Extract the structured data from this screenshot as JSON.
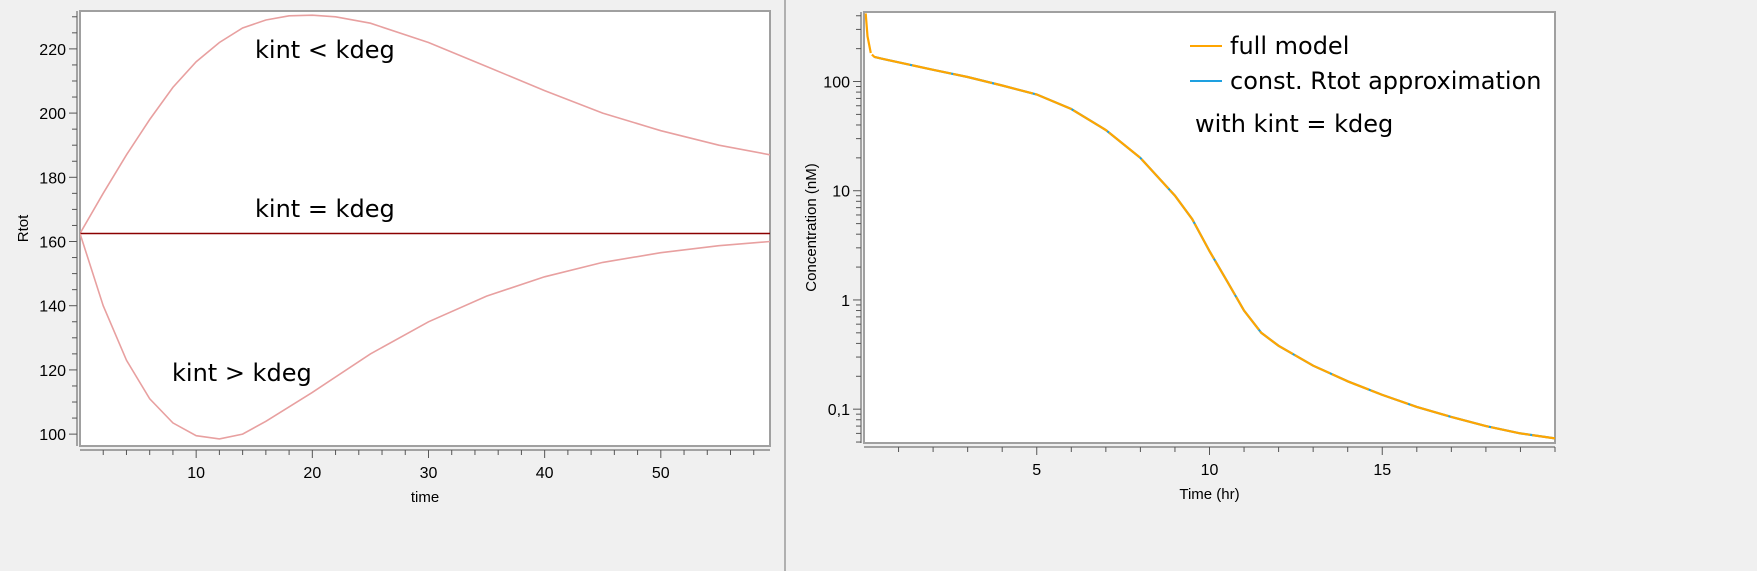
{
  "chart_data": [
    {
      "type": "line",
      "xlabel": "time",
      "ylabel": "Rtot",
      "xlim": [
        0,
        59.4
      ],
      "ylim": [
        96.3,
        231.8
      ],
      "xticks": [
        10,
        20,
        30,
        40,
        50
      ],
      "yticks": [
        100,
        120,
        140,
        160,
        180,
        200,
        220
      ],
      "grid": false,
      "annotations": [
        "kint < kdeg",
        "kint = kdeg",
        "kint > kdeg"
      ],
      "series": [
        {
          "color": "#e8a0a0",
          "x": [
            0,
            2,
            4,
            6,
            8,
            10,
            12,
            14,
            16,
            18,
            20,
            22,
            25,
            30,
            35,
            40,
            45,
            50,
            55,
            59.4
          ],
          "y": [
            162.5,
            175,
            187,
            198,
            208,
            216,
            222,
            226.5,
            229,
            230.3,
            230.5,
            230,
            228,
            222,
            214.5,
            207,
            200,
            194.5,
            190,
            187
          ]
        },
        {
          "color": "#8b0000",
          "x": [
            0,
            59.4
          ],
          "y": [
            162.5,
            162.5
          ]
        },
        {
          "color": "#e8a0a0",
          "x": [
            0,
            2,
            4,
            6,
            8,
            10,
            12,
            14,
            16,
            20,
            25,
            30,
            35,
            40,
            45,
            50,
            55,
            59.4
          ],
          "y": [
            162.5,
            140,
            123,
            111,
            103.5,
            99.5,
            98.5,
            100,
            104,
            113,
            125,
            135,
            143,
            149,
            153.5,
            156.5,
            158.7,
            160
          ]
        }
      ]
    },
    {
      "type": "line",
      "xlabel": "Time (hr)",
      "ylabel": "Concentration (nM)",
      "yscale": "log",
      "xlim": [
        0,
        20
      ],
      "ylim": [
        0.049,
        433
      ],
      "xticks": [
        5,
        10,
        15
      ],
      "yticks": [
        0.1,
        1,
        10,
        100
      ],
      "ytick_labels": [
        "0,1",
        "1",
        "10",
        "100"
      ],
      "grid": false,
      "legend": "top-right",
      "legend_note": "with kint = kdeg",
      "series": [
        {
          "name": "full model",
          "color": "#ffa500",
          "x": [
            0.05,
            0.1,
            0.2,
            0.3,
            0.5,
            1,
            2,
            3,
            4,
            5,
            6,
            7,
            8,
            9,
            9.5,
            10,
            10.5,
            11,
            11.5,
            12,
            13,
            14,
            15,
            16,
            17,
            18,
            19,
            20
          ],
          "y": [
            420,
            260,
            180,
            168,
            162,
            150,
            128,
            110,
            92,
            76,
            56,
            36,
            20,
            9,
            5.5,
            2.8,
            1.5,
            0.8,
            0.5,
            0.38,
            0.25,
            0.18,
            0.135,
            0.105,
            0.085,
            0.07,
            0.06,
            0.054
          ]
        },
        {
          "name": "const. Rtot approximation",
          "color": "#1ea0e0",
          "x": [
            0.3,
            0.5,
            1,
            2,
            3,
            4,
            5,
            6,
            7,
            8,
            9,
            9.5,
            10,
            10.5,
            11,
            11.5,
            12,
            13,
            14,
            15,
            16,
            17,
            18,
            19,
            20
          ],
          "y": [
            168,
            162,
            150,
            128,
            110,
            92,
            76,
            56,
            36,
            20,
            9,
            5.5,
            2.8,
            1.5,
            0.8,
            0.5,
            0.38,
            0.25,
            0.18,
            0.135,
            0.105,
            0.085,
            0.07,
            0.06,
            0.054
          ]
        }
      ]
    }
  ]
}
